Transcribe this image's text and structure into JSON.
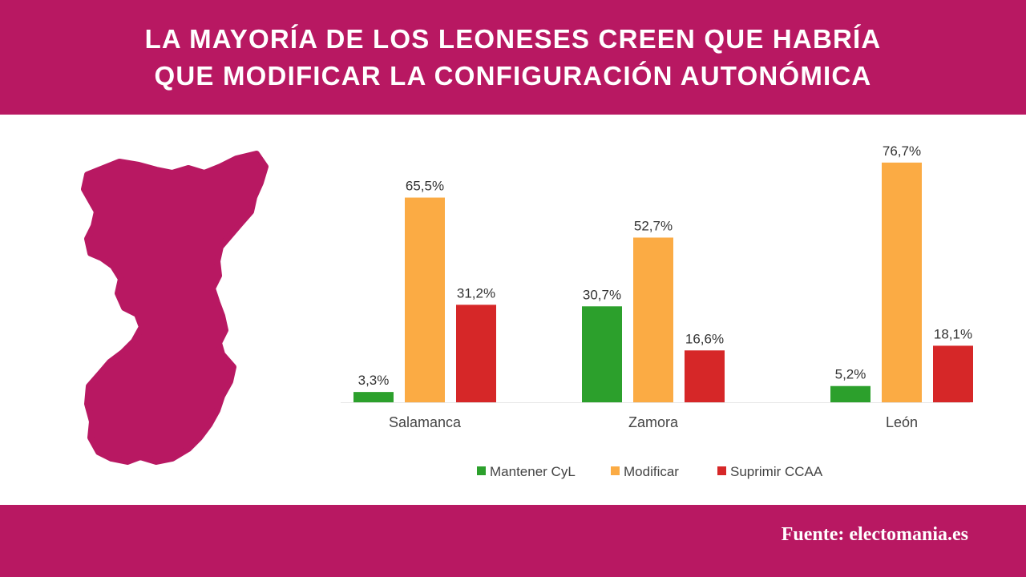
{
  "header": {
    "title_line1": "LA MAYORÍA DE LOS LEONESES CREEN QUE HABRÍA",
    "title_line2": "QUE MODIFICAR LA CONFIGURACIÓN AUTONÓMICA"
  },
  "footer": {
    "source": "Fuente: electomania.es"
  },
  "colors": {
    "brand": "#b81862",
    "mantener": "#2ca02c",
    "modificar": "#fbab44",
    "suprimir": "#d62728"
  },
  "chart_data": {
    "type": "bar",
    "title": "",
    "xlabel": "",
    "ylabel": "",
    "categories": [
      "Salamanca",
      "Zamora",
      "León"
    ],
    "series": [
      {
        "name": "Mantener CyL",
        "color": "#2ca02c",
        "values": [
          3.3,
          30.7,
          5.2
        ],
        "labels": [
          "3,3%",
          "30,7%",
          "5,2%"
        ]
      },
      {
        "name": "Modificar",
        "color": "#fbab44",
        "values": [
          65.5,
          52.7,
          76.7
        ],
        "labels": [
          "65,5%",
          "52,7%",
          "76,7%"
        ]
      },
      {
        "name": "Suprimir CCAA",
        "color": "#d62728",
        "values": [
          31.2,
          16.6,
          18.1
        ],
        "labels": [
          "31,2%",
          "16,6%",
          "18,1%"
        ]
      }
    ],
    "ylim": [
      0,
      80
    ],
    "grid": false,
    "legend": "bottom"
  }
}
